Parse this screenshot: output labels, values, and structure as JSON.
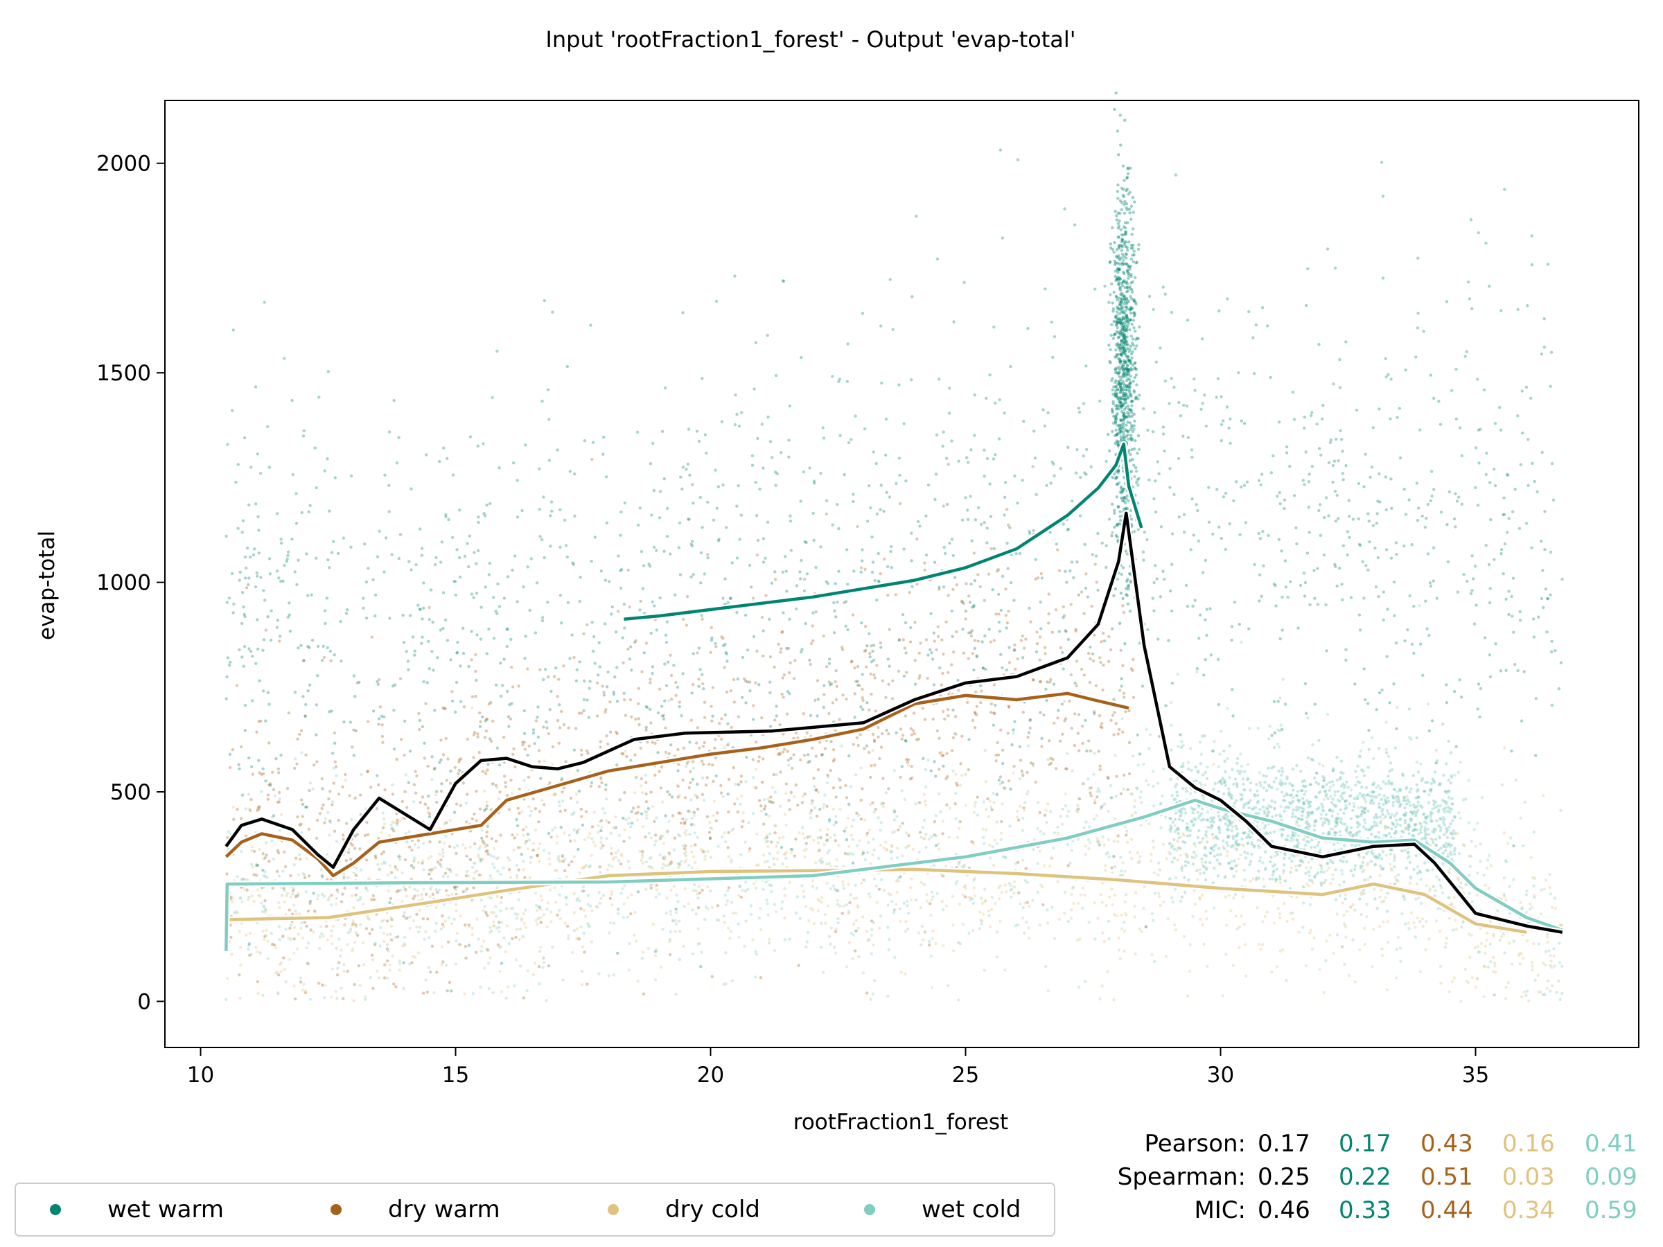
{
  "chart_data": {
    "type": "scatter",
    "title": "Input 'rootFraction1_forest' - Output 'evap-total'",
    "xlabel": "rootFraction1_forest",
    "ylabel": "evap-total",
    "xlim": [
      9.3,
      38.2
    ],
    "ylim": [
      -110,
      2150
    ],
    "xticks": [
      10,
      15,
      20,
      25,
      30,
      35
    ],
    "yticks": [
      0,
      500,
      1000,
      1500,
      2000
    ],
    "grid": false,
    "legend_position": "bottom-left",
    "colors": {
      "overall": "#000000",
      "wet_warm": "#018571",
      "dry_warm": "#a6611a",
      "dry_cold": "#dfc27d",
      "wet_cold": "#80cdc1"
    },
    "series": [
      {
        "name": "wet warm",
        "color": "#018571",
        "trend_x": [
          18.3,
          19.0,
          20.0,
          21.0,
          22.0,
          23.0,
          24.0,
          25.0,
          26.0,
          27.0,
          27.6,
          27.95,
          28.1,
          28.2,
          28.45
        ],
        "trend_y": [
          912,
          920,
          935,
          950,
          965,
          985,
          1005,
          1035,
          1080,
          1160,
          1225,
          1280,
          1330,
          1230,
          1130
        ]
      },
      {
        "name": "dry warm",
        "color": "#a6611a",
        "trend_x": [
          10.5,
          10.8,
          11.2,
          11.8,
          12.3,
          12.6,
          13.0,
          13.5,
          14.5,
          15.5,
          16.0,
          17.0,
          18.0,
          19.0,
          20.0,
          21.0,
          22.0,
          23.0,
          24.0,
          25.0,
          26.0,
          27.0,
          27.5,
          28.2
        ],
        "trend_y": [
          345,
          380,
          400,
          385,
          340,
          300,
          330,
          380,
          400,
          420,
          480,
          515,
          550,
          570,
          590,
          605,
          625,
          650,
          710,
          730,
          720,
          735,
          720,
          700
        ]
      },
      {
        "name": "dry cold",
        "color": "#dfc27d",
        "trend_x": [
          10.5,
          12.5,
          14.7,
          16.0,
          18.0,
          20.0,
          22.0,
          24.0,
          26.0,
          28.0,
          30.0,
          32.0,
          33.0,
          34.0,
          35.0,
          36.0
        ],
        "trend_y": [
          195,
          200,
          240,
          265,
          300,
          310,
          312,
          315,
          305,
          290,
          270,
          255,
          280,
          255,
          185,
          165
        ]
      },
      {
        "name": "wet cold",
        "color": "#80cdc1",
        "trend_x": [
          10.5,
          10.52,
          14.0,
          18.0,
          22.0,
          25.0,
          27.0,
          28.5,
          29.5,
          30.0,
          31.0,
          32.0,
          33.0,
          33.8,
          34.5,
          35.0,
          36.0,
          36.7
        ],
        "trend_y": [
          120,
          280,
          283,
          285,
          300,
          345,
          390,
          440,
          480,
          460,
          430,
          390,
          380,
          385,
          330,
          270,
          200,
          170
        ]
      }
    ],
    "overall_trend": {
      "color": "#000000",
      "x": [
        10.5,
        10.8,
        11.2,
        11.8,
        12.3,
        12.6,
        13.0,
        13.5,
        14.5,
        15.0,
        15.5,
        16.0,
        16.5,
        17.0,
        17.5,
        18.5,
        19.5,
        21.2,
        23.0,
        24.0,
        25.0,
        26.0,
        27.0,
        27.6,
        28.0,
        28.15,
        28.5,
        29.0,
        29.5,
        30.0,
        30.5,
        31.0,
        32.0,
        33.0,
        33.8,
        34.2,
        35.0,
        36.0,
        36.7
      ],
      "y": [
        370,
        420,
        435,
        410,
        350,
        320,
        410,
        485,
        410,
        520,
        575,
        580,
        560,
        555,
        570,
        625,
        640,
        645,
        665,
        720,
        760,
        775,
        820,
        900,
        1050,
        1165,
        850,
        560,
        510,
        480,
        430,
        370,
        345,
        370,
        375,
        330,
        210,
        180,
        165
      ]
    },
    "stats": {
      "labels": [
        "Pearson:",
        "Spearman:",
        "MIC:"
      ],
      "rows": [
        [
          "0.17",
          "0.17",
          "0.43",
          "0.16",
          "0.41"
        ],
        [
          "0.25",
          "0.22",
          "0.51",
          "0.03",
          "0.09"
        ],
        [
          "0.46",
          "0.33",
          "0.44",
          "0.34",
          "0.59"
        ]
      ]
    }
  }
}
